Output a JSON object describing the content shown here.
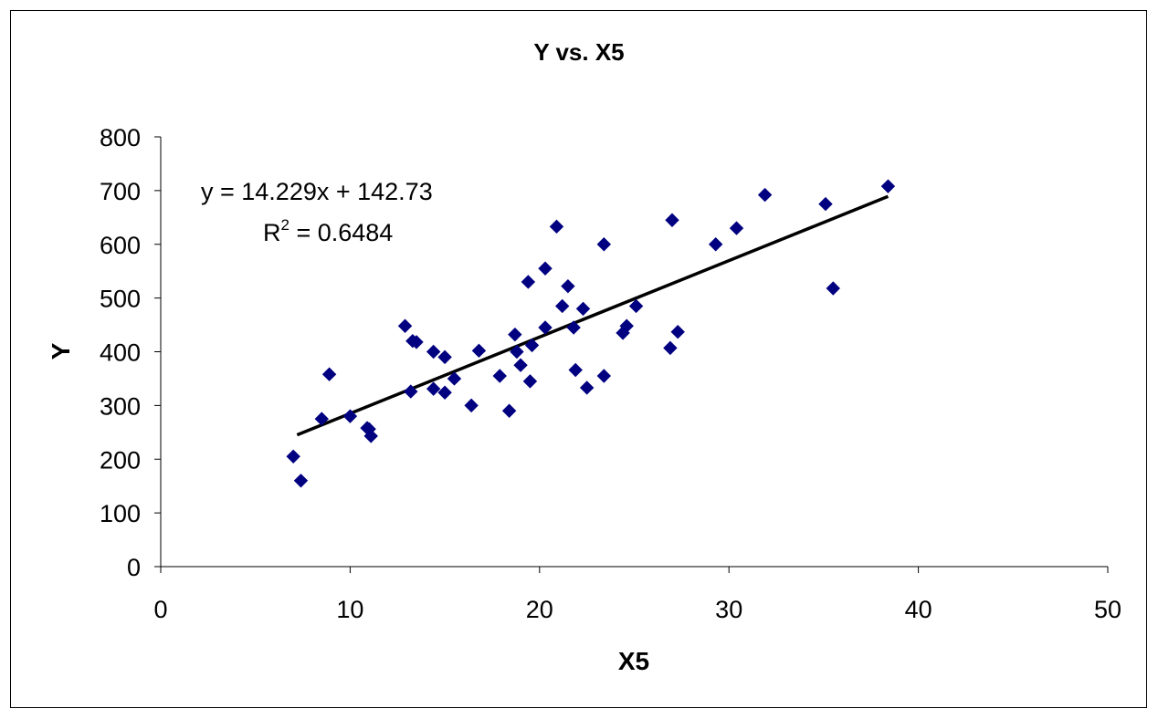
{
  "chart_data": {
    "type": "scatter",
    "title": "Y vs. X5",
    "xlabel": "X5",
    "ylabel": "Y",
    "xlim": [
      0,
      50
    ],
    "ylim": [
      0,
      800
    ],
    "x_ticks": [
      0,
      10,
      20,
      30,
      40,
      50
    ],
    "y_ticks": [
      0,
      100,
      200,
      300,
      400,
      500,
      600,
      700,
      800
    ],
    "grid": false,
    "legend": "none",
    "marker_color": "#000080",
    "trendline_color": "#000000",
    "x": [
      7.0,
      7.4,
      8.5,
      8.9,
      10.0,
      10.9,
      11.1,
      11.0,
      12.9,
      13.2,
      13.3,
      13.5,
      14.4,
      14.4,
      15.0,
      15.0,
      15.5,
      16.4,
      16.8,
      17.9,
      18.4,
      18.7,
      18.8,
      19.0,
      19.4,
      19.5,
      19.6,
      20.3,
      20.3,
      20.9,
      21.2,
      21.5,
      21.8,
      21.9,
      22.3,
      22.5,
      23.4,
      23.4,
      24.4,
      24.6,
      25.1,
      26.9,
      27.0,
      27.3,
      29.3,
      30.4,
      31.9,
      35.1,
      35.5,
      38.4
    ],
    "y": [
      205,
      160,
      275,
      358,
      280,
      258,
      243,
      256,
      448,
      326,
      420,
      418,
      400,
      331,
      390,
      324,
      350,
      300,
      402,
      355,
      290,
      432,
      400,
      375,
      530,
      345,
      412,
      445,
      555,
      633,
      485,
      522,
      445,
      366,
      480,
      333,
      600,
      355,
      435,
      448,
      485,
      407,
      645,
      437,
      600,
      630,
      692,
      675,
      518,
      708
    ],
    "trendline": {
      "slope": 14.229,
      "intercept": 142.73,
      "x_range": [
        7.2,
        38.4
      ],
      "equation": "y = 14.229x  + 142.73",
      "r2_prefix": "R",
      "r2_exponent": "2",
      "r2_value": " = 0.6484"
    }
  }
}
